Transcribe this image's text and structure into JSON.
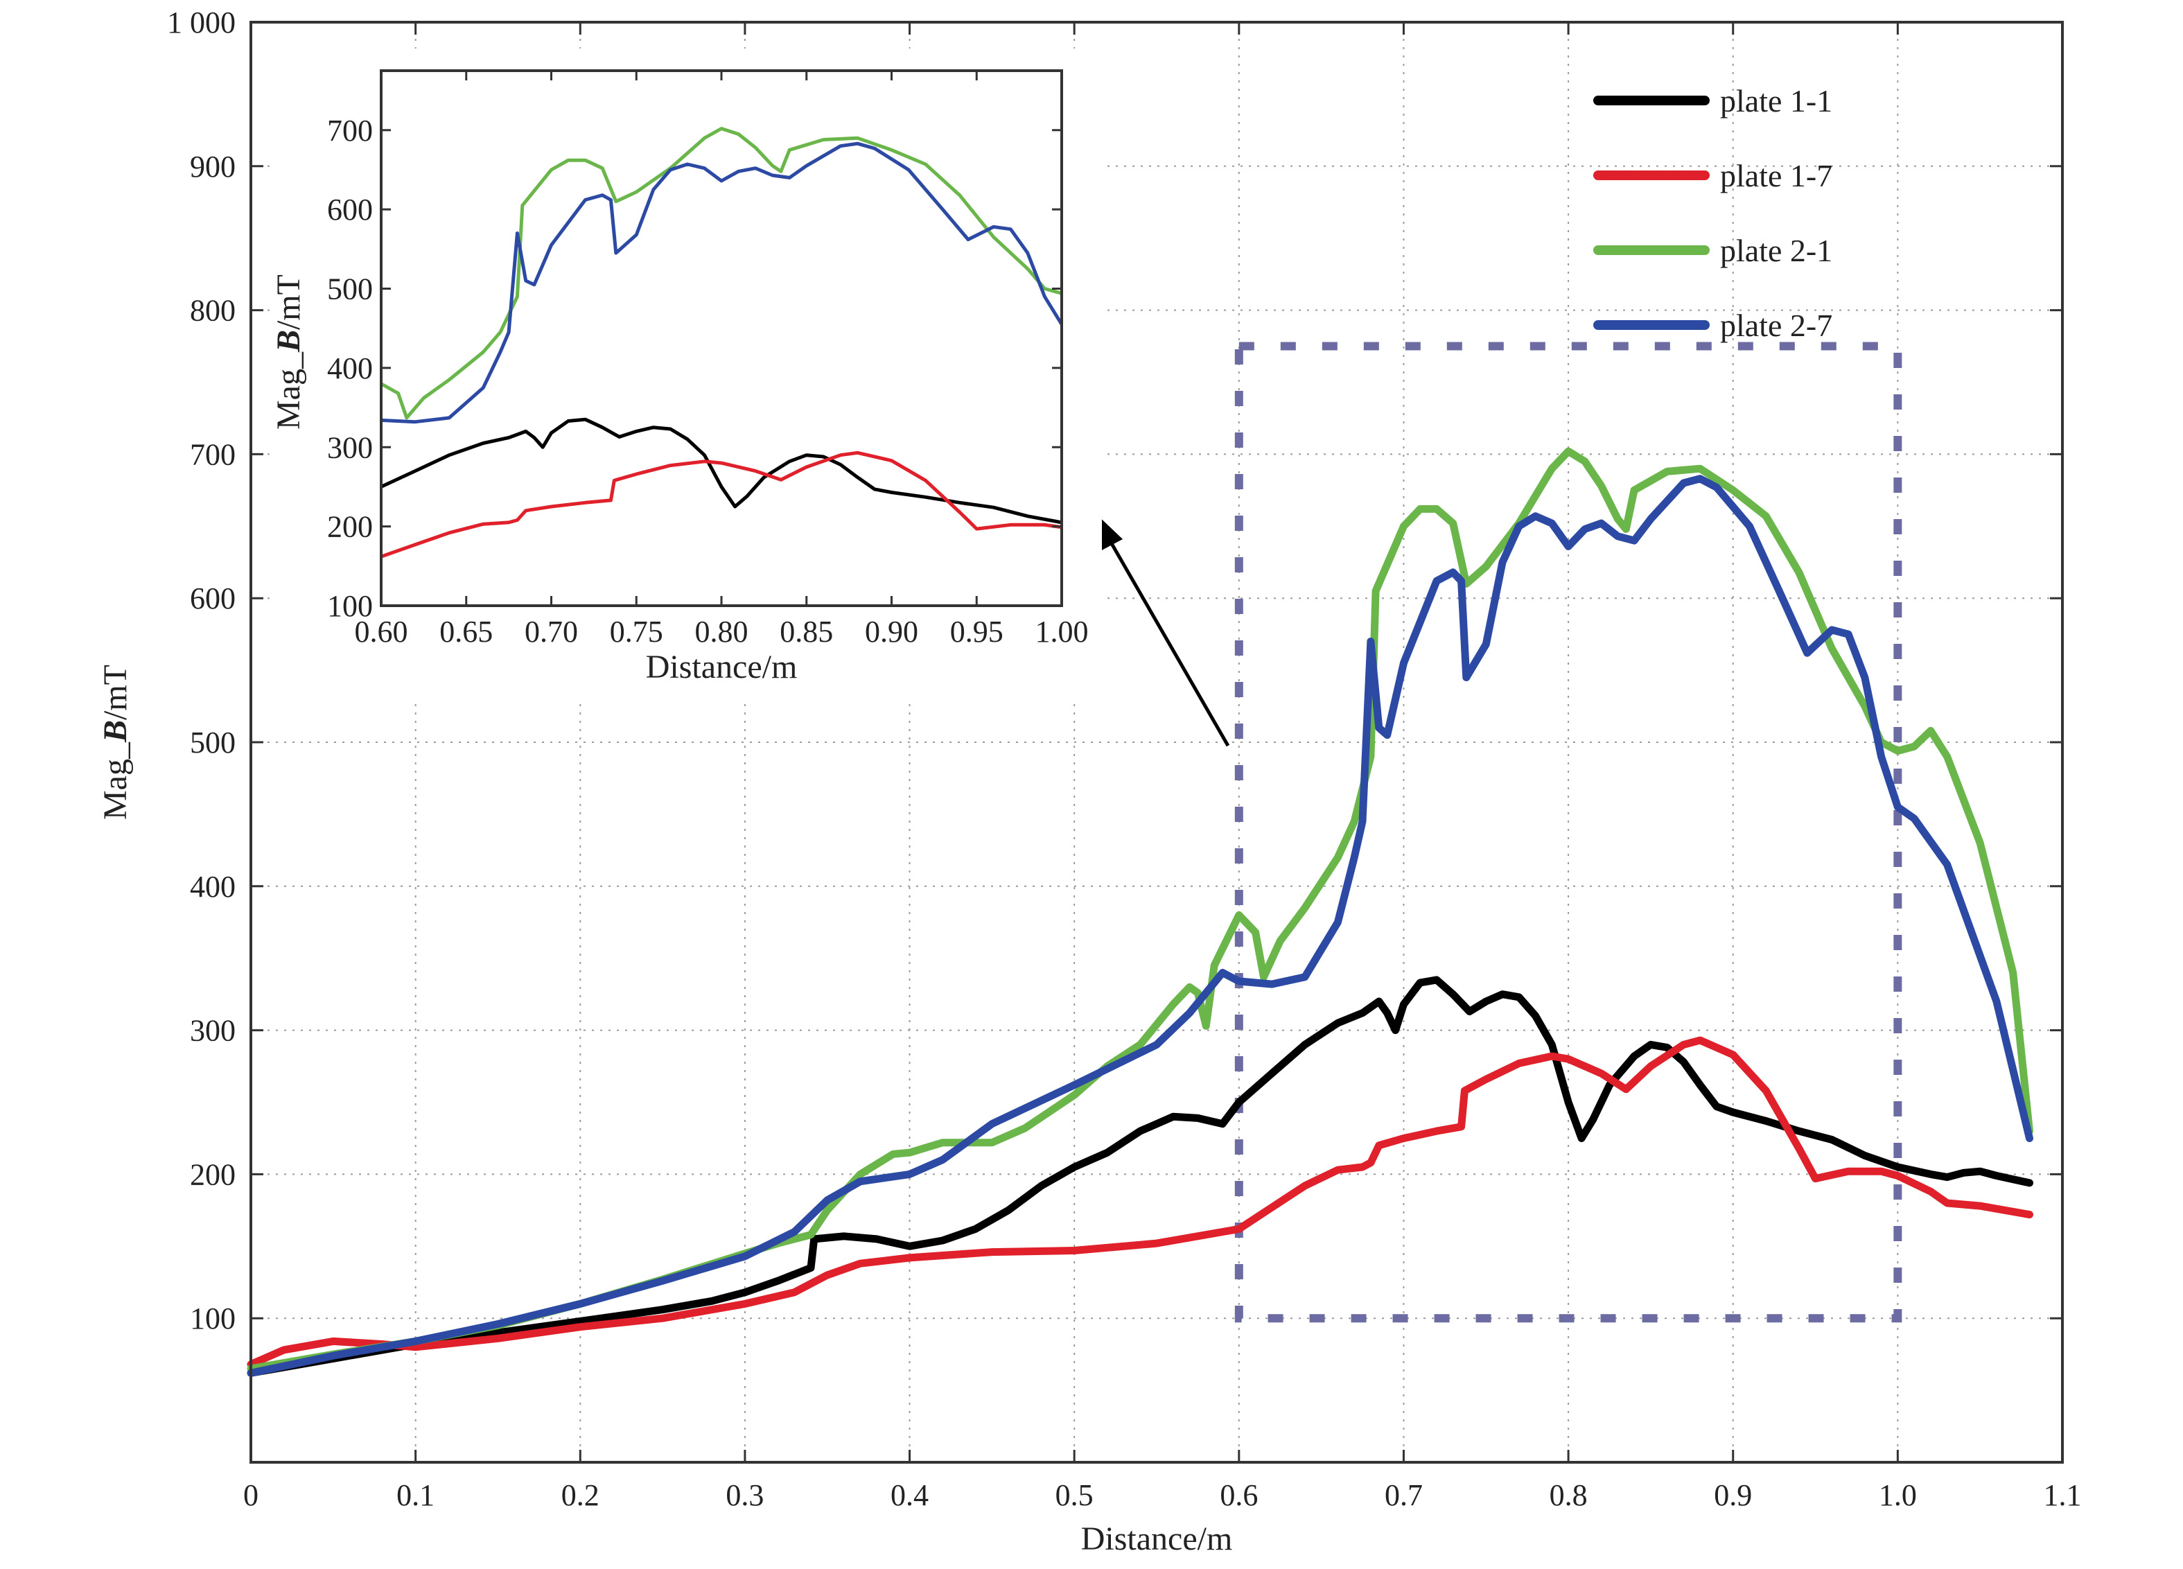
{
  "chart_data": [
    {
      "id": "main",
      "type": "line",
      "xlabel": "Distance/m",
      "ylabel": "Mag_B/mT",
      "ylabel_parts": [
        "Mag_",
        "B",
        "/mT"
      ],
      "xlim": [
        0,
        1.1
      ],
      "ylim": [
        0,
        1000
      ],
      "xticks": [
        0,
        0.1,
        0.2,
        0.3,
        0.4,
        0.5,
        0.6,
        0.7,
        0.8,
        0.9,
        1.0,
        1.1
      ],
      "xtick_labels": [
        "0",
        "0.1",
        "0.2",
        "0.3",
        "0.4",
        "0.5",
        "0.6",
        "0.7",
        "0.8",
        "0.9",
        "1.0",
        "1.1"
      ],
      "yticks": [
        100,
        200,
        300,
        400,
        500,
        600,
        700,
        800,
        900,
        1000
      ],
      "ytick_labels": [
        "100",
        "200",
        "300",
        "400",
        "500",
        "600",
        "700",
        "800",
        "900",
        "1 000"
      ],
      "grid": true,
      "legend_position": "top-right",
      "zoom_box": {
        "x": [
          0.6,
          1.0
        ],
        "y": [
          100,
          775
        ]
      },
      "series": [
        {
          "name": "plate 1-1",
          "color": "#000000",
          "points": [
            [
              0,
              62
            ],
            [
              0.05,
              72
            ],
            [
              0.1,
              82
            ],
            [
              0.15,
              90
            ],
            [
              0.2,
              98
            ],
            [
              0.25,
              106
            ],
            [
              0.28,
              112
            ],
            [
              0.3,
              118
            ],
            [
              0.32,
              126
            ],
            [
              0.34,
              135
            ],
            [
              0.342,
              155
            ],
            [
              0.36,
              157
            ],
            [
              0.38,
              155
            ],
            [
              0.4,
              150
            ],
            [
              0.42,
              154
            ],
            [
              0.44,
              162
            ],
            [
              0.46,
              175
            ],
            [
              0.48,
              192
            ],
            [
              0.5,
              205
            ],
            [
              0.52,
              215
            ],
            [
              0.54,
              230
            ],
            [
              0.56,
              240
            ],
            [
              0.575,
              239
            ],
            [
              0.59,
              235
            ],
            [
              0.6,
              250
            ],
            [
              0.62,
              270
            ],
            [
              0.64,
              290
            ],
            [
              0.66,
              305
            ],
            [
              0.675,
              312
            ],
            [
              0.68,
              316
            ],
            [
              0.685,
              320
            ],
            [
              0.69,
              312
            ],
            [
              0.695,
              300
            ],
            [
              0.7,
              318
            ],
            [
              0.71,
              333
            ],
            [
              0.72,
              335
            ],
            [
              0.73,
              325
            ],
            [
              0.74,
              313
            ],
            [
              0.75,
              320
            ],
            [
              0.76,
              325
            ],
            [
              0.77,
              323
            ],
            [
              0.78,
              310
            ],
            [
              0.79,
              290
            ],
            [
              0.8,
              250
            ],
            [
              0.808,
              225
            ],
            [
              0.815,
              238
            ],
            [
              0.825,
              262
            ],
            [
              0.84,
              282
            ],
            [
              0.85,
              290
            ],
            [
              0.86,
              288
            ],
            [
              0.87,
              278
            ],
            [
              0.88,
              262
            ],
            [
              0.89,
              247
            ],
            [
              0.9,
              243
            ],
            [
              0.92,
              237
            ],
            [
              0.94,
              230
            ],
            [
              0.96,
              224
            ],
            [
              0.98,
              213
            ],
            [
              1.0,
              205
            ],
            [
              1.02,
              200
            ],
            [
              1.03,
              198
            ],
            [
              1.04,
              201
            ],
            [
              1.05,
              202
            ],
            [
              1.06,
              199
            ],
            [
              1.08,
              194
            ]
          ]
        },
        {
          "name": "plate 1-7",
          "color": "#e0202a",
          "points": [
            [
              0,
              68
            ],
            [
              0.02,
              78
            ],
            [
              0.05,
              84
            ],
            [
              0.08,
              82
            ],
            [
              0.1,
              80
            ],
            [
              0.15,
              86
            ],
            [
              0.2,
              94
            ],
            [
              0.25,
              100
            ],
            [
              0.3,
              110
            ],
            [
              0.33,
              118
            ],
            [
              0.35,
              130
            ],
            [
              0.37,
              138
            ],
            [
              0.4,
              142
            ],
            [
              0.45,
              146
            ],
            [
              0.5,
              147
            ],
            [
              0.55,
              152
            ],
            [
              0.6,
              162
            ],
            [
              0.62,
              177
            ],
            [
              0.64,
              192
            ],
            [
              0.66,
              203
            ],
            [
              0.675,
              205
            ],
            [
              0.68,
              208
            ],
            [
              0.685,
              220
            ],
            [
              0.7,
              225
            ],
            [
              0.72,
              230
            ],
            [
              0.735,
              233
            ],
            [
              0.737,
              258
            ],
            [
              0.75,
              266
            ],
            [
              0.77,
              277
            ],
            [
              0.79,
              282
            ],
            [
              0.8,
              280
            ],
            [
              0.82,
              270
            ],
            [
              0.835,
              259
            ],
            [
              0.85,
              275
            ],
            [
              0.87,
              290
            ],
            [
              0.88,
              293
            ],
            [
              0.9,
              283
            ],
            [
              0.92,
              258
            ],
            [
              0.94,
              218
            ],
            [
              0.95,
              197
            ],
            [
              0.97,
              202
            ],
            [
              0.99,
              202
            ],
            [
              1.0,
              199
            ],
            [
              1.02,
              188
            ],
            [
              1.03,
              180
            ],
            [
              1.05,
              178
            ],
            [
              1.08,
              172
            ]
          ]
        },
        {
          "name": "plate 2-1",
          "color": "#6ab64a",
          "points": [
            [
              0,
              65
            ],
            [
              0.05,
              75
            ],
            [
              0.1,
              84
            ],
            [
              0.15,
              95
            ],
            [
              0.2,
              110
            ],
            [
              0.25,
              127
            ],
            [
              0.3,
              145
            ],
            [
              0.32,
              152
            ],
            [
              0.34,
              158
            ],
            [
              0.35,
              175
            ],
            [
              0.37,
              200
            ],
            [
              0.39,
              214
            ],
            [
              0.4,
              215
            ],
            [
              0.42,
              222
            ],
            [
              0.45,
              222
            ],
            [
              0.47,
              232
            ],
            [
              0.5,
              255
            ],
            [
              0.52,
              275
            ],
            [
              0.54,
              290
            ],
            [
              0.56,
              318
            ],
            [
              0.57,
              330
            ],
            [
              0.575,
              326
            ],
            [
              0.58,
              303
            ],
            [
              0.585,
              345
            ],
            [
              0.6,
              380
            ],
            [
              0.61,
              368
            ],
            [
              0.615,
              337
            ],
            [
              0.625,
              362
            ],
            [
              0.64,
              385
            ],
            [
              0.66,
              420
            ],
            [
              0.67,
              445
            ],
            [
              0.68,
              490
            ],
            [
              0.683,
              605
            ],
            [
              0.7,
              650
            ],
            [
              0.71,
              662
            ],
            [
              0.72,
              662
            ],
            [
              0.73,
              652
            ],
            [
              0.738,
              610
            ],
            [
              0.75,
              622
            ],
            [
              0.77,
              652
            ],
            [
              0.79,
              690
            ],
            [
              0.8,
              702
            ],
            [
              0.81,
              695
            ],
            [
              0.82,
              678
            ],
            [
              0.83,
              655
            ],
            [
              0.835,
              648
            ],
            [
              0.84,
              675
            ],
            [
              0.86,
              688
            ],
            [
              0.88,
              690
            ],
            [
              0.9,
              675
            ],
            [
              0.92,
              657
            ],
            [
              0.94,
              618
            ],
            [
              0.96,
              565
            ],
            [
              0.98,
              525
            ],
            [
              0.99,
              500
            ],
            [
              1.0,
              494
            ],
            [
              1.01,
              497
            ],
            [
              1.02,
              508
            ],
            [
              1.03,
              490
            ],
            [
              1.05,
              430
            ],
            [
              1.07,
              340
            ],
            [
              1.08,
              230
            ]
          ]
        },
        {
          "name": "plate 2-7",
          "color": "#2c4aa3",
          "points": [
            [
              0,
              62
            ],
            [
              0.05,
              74
            ],
            [
              0.1,
              84
            ],
            [
              0.15,
              96
            ],
            [
              0.2,
              110
            ],
            [
              0.25,
              126
            ],
            [
              0.3,
              143
            ],
            [
              0.33,
              160
            ],
            [
              0.35,
              182
            ],
            [
              0.37,
              195
            ],
            [
              0.4,
              200
            ],
            [
              0.42,
              210
            ],
            [
              0.45,
              235
            ],
            [
              0.5,
              262
            ],
            [
              0.55,
              290
            ],
            [
              0.57,
              312
            ],
            [
              0.59,
              340
            ],
            [
              0.6,
              334
            ],
            [
              0.62,
              332
            ],
            [
              0.64,
              337
            ],
            [
              0.66,
              375
            ],
            [
              0.67,
              420
            ],
            [
              0.675,
              445
            ],
            [
              0.68,
              570
            ],
            [
              0.685,
              510
            ],
            [
              0.69,
              505
            ],
            [
              0.7,
              555
            ],
            [
              0.72,
              612
            ],
            [
              0.73,
              618
            ],
            [
              0.735,
              612
            ],
            [
              0.738,
              545
            ],
            [
              0.75,
              568
            ],
            [
              0.76,
              625
            ],
            [
              0.77,
              650
            ],
            [
              0.78,
              657
            ],
            [
              0.79,
              652
            ],
            [
              0.8,
              636
            ],
            [
              0.81,
              648
            ],
            [
              0.82,
              652
            ],
            [
              0.83,
              643
            ],
            [
              0.84,
              640
            ],
            [
              0.85,
              655
            ],
            [
              0.87,
              680
            ],
            [
              0.88,
              683
            ],
            [
              0.89,
              677
            ],
            [
              0.91,
              650
            ],
            [
              0.93,
              600
            ],
            [
              0.945,
              562
            ],
            [
              0.96,
              578
            ],
            [
              0.97,
              575
            ],
            [
              0.98,
              545
            ],
            [
              0.99,
              490
            ],
            [
              1.0,
              455
            ],
            [
              1.01,
              447
            ],
            [
              1.03,
              415
            ],
            [
              1.06,
              320
            ],
            [
              1.08,
              225
            ]
          ]
        }
      ]
    },
    {
      "id": "inset",
      "type": "line",
      "xlabel": "Distance/m",
      "ylabel": "Mag_B/mT",
      "ylabel_parts": [
        "Mag_",
        "B",
        "/mT"
      ],
      "xlim": [
        0.6,
        1.0
      ],
      "ylim": [
        100,
        775
      ],
      "xticks": [
        0.6,
        0.65,
        0.7,
        0.75,
        0.8,
        0.85,
        0.9,
        0.95,
        1.0
      ],
      "xtick_labels": [
        "0.60",
        "0.65",
        "0.70",
        "0.75",
        "0.80",
        "0.85",
        "0.90",
        "0.95",
        "1.00"
      ],
      "yticks": [
        100,
        200,
        300,
        400,
        500,
        600,
        700
      ],
      "ytick_labels": [
        "100",
        "200",
        "300",
        "400",
        "500",
        "600",
        "700"
      ],
      "grid": false
    }
  ],
  "legend": {
    "items": [
      {
        "label": "plate 1-1",
        "color": "#000000"
      },
      {
        "label": "plate 1-7",
        "color": "#e0202a"
      },
      {
        "label": "plate 2-1",
        "color": "#6ab64a"
      },
      {
        "label": "plate 2-7",
        "color": "#2c4aa3"
      }
    ]
  }
}
